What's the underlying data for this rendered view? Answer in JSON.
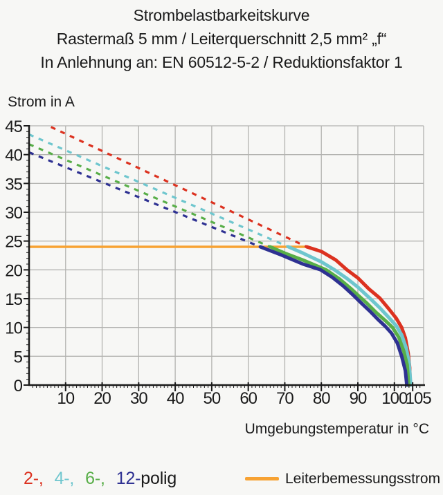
{
  "page": {
    "background": "#F7F7F5"
  },
  "title": {
    "line1": "Strombelastbarkeitskurve",
    "line2": "Rastermaß 5 mm / Leiterquerschnitt 2,5 mm² „f“",
    "line3": "In Anlehnung an: EN 60512-5-2 / Reduktionsfaktor 1"
  },
  "chart_data": {
    "type": "line",
    "ylabel": "Strom in A",
    "xlabel": "Umgebungstemperatur in °C",
    "x_range": [
      0,
      108
    ],
    "y_range": [
      0,
      45
    ],
    "x_major_ticks": [
      10,
      20,
      30,
      40,
      50,
      60,
      70,
      80,
      90,
      100,
      105
    ],
    "x_gridlines": [
      10,
      20,
      30,
      40,
      50,
      60,
      70,
      80,
      90,
      100
    ],
    "y_ticks": [
      0,
      5,
      10,
      15,
      20,
      25,
      30,
      35,
      40,
      45
    ],
    "grid_color": "#B3B3B0",
    "axis_color": "#1A1A1A",
    "rated_current": {
      "label": "Leiterbemessungsstrom",
      "value": 24,
      "color": "#F7A233",
      "t_start": 0,
      "t_end": 76
    },
    "series": [
      {
        "name": "2-polig",
        "color": "#DC3220",
        "dashed": [
          [
            6,
            44.8
          ],
          [
            76,
            24
          ]
        ],
        "solid": [
          [
            76,
            24
          ],
          [
            80,
            23.2
          ],
          [
            84,
            21.7
          ],
          [
            87,
            20
          ],
          [
            90,
            18.6
          ],
          [
            93,
            16.7
          ],
          [
            96,
            15.1
          ],
          [
            98.5,
            13.2
          ],
          [
            100.5,
            11.6
          ],
          [
            102,
            10
          ],
          [
            103,
            8.2
          ],
          [
            103.8,
            5.5
          ],
          [
            104.2,
            3
          ],
          [
            104.3,
            0
          ]
        ]
      },
      {
        "name": "4-polig",
        "color": "#6EC6CE",
        "dashed": [
          [
            0,
            43.5
          ],
          [
            71,
            24
          ]
        ],
        "solid": [
          [
            71,
            24
          ],
          [
            75,
            22.9
          ],
          [
            80,
            21.4
          ],
          [
            83.6,
            20
          ],
          [
            87,
            18.5
          ],
          [
            90,
            17
          ],
          [
            93.4,
            15
          ],
          [
            96,
            13.4
          ],
          [
            98.5,
            11.7
          ],
          [
            100.5,
            10.3
          ],
          [
            102,
            8.7
          ],
          [
            103.2,
            6.5
          ],
          [
            104,
            4
          ],
          [
            104.5,
            0
          ]
        ]
      },
      {
        "name": "6-polig",
        "color": "#58AE48",
        "dashed": [
          [
            0,
            41.8
          ],
          [
            66,
            24
          ]
        ],
        "solid": [
          [
            66,
            24
          ],
          [
            70,
            22.9
          ],
          [
            75,
            21.7
          ],
          [
            81.3,
            20
          ],
          [
            85,
            18.4
          ],
          [
            88,
            16.8
          ],
          [
            90.2,
            15.5
          ],
          [
            92.5,
            14.2
          ],
          [
            95,
            12.6
          ],
          [
            97.5,
            11.2
          ],
          [
            99.5,
            10
          ],
          [
            101.2,
            8.3
          ],
          [
            102.5,
            6
          ],
          [
            103.5,
            3.5
          ],
          [
            103.9,
            0
          ]
        ]
      },
      {
        "name": "12-polig",
        "color": "#2E3192",
        "dashed": [
          [
            0,
            40.4
          ],
          [
            63.3,
            24
          ]
        ],
        "solid": [
          [
            63.3,
            24
          ],
          [
            69,
            22.6
          ],
          [
            75,
            21
          ],
          [
            79.8,
            20
          ],
          [
            83,
            18.7
          ],
          [
            86,
            17.2
          ],
          [
            88.9,
            15.5
          ],
          [
            91,
            14.2
          ],
          [
            93.5,
            12.7
          ],
          [
            95.5,
            11.4
          ],
          [
            97.5,
            10.2
          ],
          [
            99.2,
            9
          ],
          [
            100.8,
            7.3
          ],
          [
            102,
            5
          ],
          [
            103,
            2.5
          ],
          [
            103.4,
            0
          ]
        ]
      }
    ]
  },
  "legend": {
    "items": [
      {
        "text": "2-,",
        "color": "#DC3220"
      },
      {
        "text": "4-,",
        "color": "#6EC6CE"
      },
      {
        "text": "6-,",
        "color": "#58AE48"
      },
      {
        "text": "12-",
        "color": "#2E3192"
      },
      {
        "text": "polig",
        "color": "#1A1A1A"
      }
    ],
    "rated_label": "Leiterbemessungsstrom",
    "rated_color": "#F7A233"
  }
}
